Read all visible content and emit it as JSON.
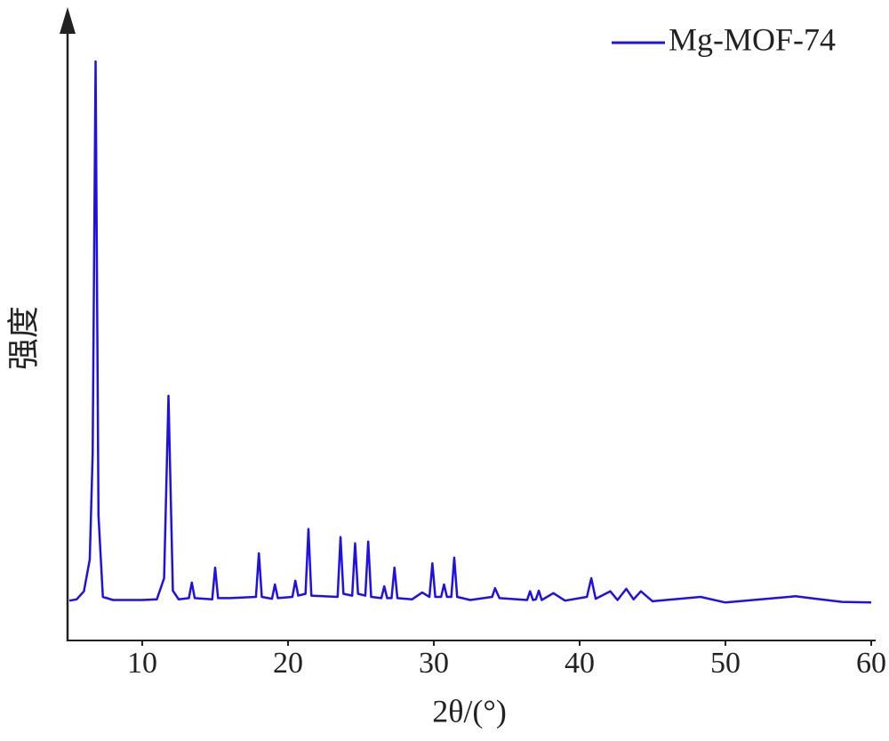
{
  "chart_data": {
    "type": "line",
    "x_label": "2θ/(°)",
    "y_label": "强度",
    "xlim": [
      5,
      60
    ],
    "ylim": [
      0,
      100
    ],
    "xticks": [
      10,
      20,
      30,
      40,
      50,
      60
    ],
    "legend": "top-right",
    "x": [
      5,
      5.5,
      6.0,
      6.4,
      6.6,
      6.8,
      7.0,
      7.3,
      8,
      9,
      10,
      11,
      11.5,
      11.8,
      12.1,
      12.5,
      13.2,
      13.4,
      13.6,
      14.8,
      15.0,
      15.2,
      16,
      17.8,
      18.0,
      18.2,
      18.9,
      19.1,
      19.3,
      20.3,
      20.5,
      20.7,
      21.2,
      21.4,
      21.6,
      23.4,
      23.6,
      23.8,
      24.4,
      24.6,
      24.8,
      25.3,
      25.5,
      25.7,
      26.4,
      26.6,
      26.8,
      27.1,
      27.3,
      27.5,
      28.5,
      29.2,
      29.7,
      29.9,
      30.1,
      30.5,
      30.7,
      30.9,
      31.2,
      31.4,
      31.6,
      32.5,
      34.0,
      34.2,
      34.5,
      36.4,
      36.6,
      36.8,
      37.0,
      37.2,
      37.4,
      38.2,
      39,
      40.5,
      40.8,
      41.1,
      42.1,
      42.6,
      43.2,
      43.7,
      44.2,
      45,
      48.3,
      50,
      54.8,
      56.2,
      58,
      60
    ],
    "series": [
      {
        "name": "Mg-MOF-74",
        "color": "#1f10e8",
        "values": [
          6.4,
          6.6,
          7.9,
          13,
          30,
          93,
          20,
          7.0,
          6.5,
          6.5,
          6.5,
          6.6,
          10,
          39.3,
          8,
          6.6,
          6.8,
          9.3,
          6.8,
          6.6,
          11.7,
          6.8,
          6.8,
          7,
          14,
          7,
          6.7,
          9,
          6.8,
          7,
          9.6,
          7.2,
          7.5,
          17.9,
          7.2,
          7,
          16.6,
          7.5,
          7.2,
          15.6,
          7.5,
          7.2,
          15.9,
          7,
          6.8,
          8.7,
          6.8,
          6.8,
          11.7,
          6.8,
          6.6,
          7.7,
          7,
          12.4,
          7,
          7,
          9,
          7,
          7,
          13.3,
          7,
          6.5,
          7,
          8.4,
          6.8,
          6.5,
          7.9,
          6.5,
          6.6,
          8,
          6.5,
          7.6,
          6.4,
          7,
          10,
          6.7,
          7.9,
          6.5,
          8.3,
          6.6,
          7.9,
          6.3,
          7,
          6.1,
          7.1,
          6.7,
          6.2,
          6.1
        ]
      }
    ]
  }
}
